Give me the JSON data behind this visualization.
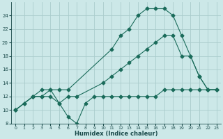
{
  "xlabel": "Humidex (Indice chaleur)",
  "background_color": "#cce8e8",
  "grid_color": "#b0d0d0",
  "line_color": "#1a6b5a",
  "xlim": [
    -0.5,
    23.5
  ],
  "ylim": [
    8,
    26
  ],
  "xticks": [
    0,
    1,
    2,
    3,
    4,
    5,
    6,
    7,
    8,
    9,
    10,
    11,
    12,
    13,
    14,
    15,
    16,
    17,
    18,
    19,
    20,
    21,
    22,
    23
  ],
  "yticks": [
    8,
    10,
    12,
    14,
    16,
    18,
    20,
    22,
    24
  ],
  "line1_x": [
    0,
    1,
    2,
    3,
    4,
    5,
    6,
    7,
    8,
    9,
    10,
    11,
    12,
    13,
    14,
    15,
    16,
    17,
    18,
    19,
    20,
    21,
    22,
    23
  ],
  "line1_y": [
    10,
    11,
    12,
    12,
    12,
    11,
    9,
    8,
    11,
    12,
    12,
    12,
    12,
    12,
    12,
    12,
    12,
    13,
    13,
    13,
    13,
    13,
    13,
    13
  ],
  "line2_x": [
    0,
    1,
    2,
    3,
    4,
    5,
    6,
    7,
    10,
    11,
    12,
    13,
    14,
    15,
    16,
    17,
    18,
    19,
    20,
    21,
    22,
    23
  ],
  "line2_y": [
    10,
    11,
    12,
    13,
    13,
    11,
    12,
    12,
    14,
    15,
    16,
    17,
    18,
    19,
    20,
    21,
    21,
    18,
    18,
    15,
    13,
    13
  ],
  "line3_x": [
    0,
    2,
    3,
    4,
    5,
    6,
    11,
    12,
    13,
    14,
    15,
    16,
    17,
    18,
    19,
    20,
    21,
    22,
    23
  ],
  "line3_y": [
    10,
    12,
    12,
    13,
    13,
    13,
    19,
    21,
    22,
    24,
    25,
    25,
    25,
    24,
    21,
    18,
    15,
    13,
    13
  ]
}
